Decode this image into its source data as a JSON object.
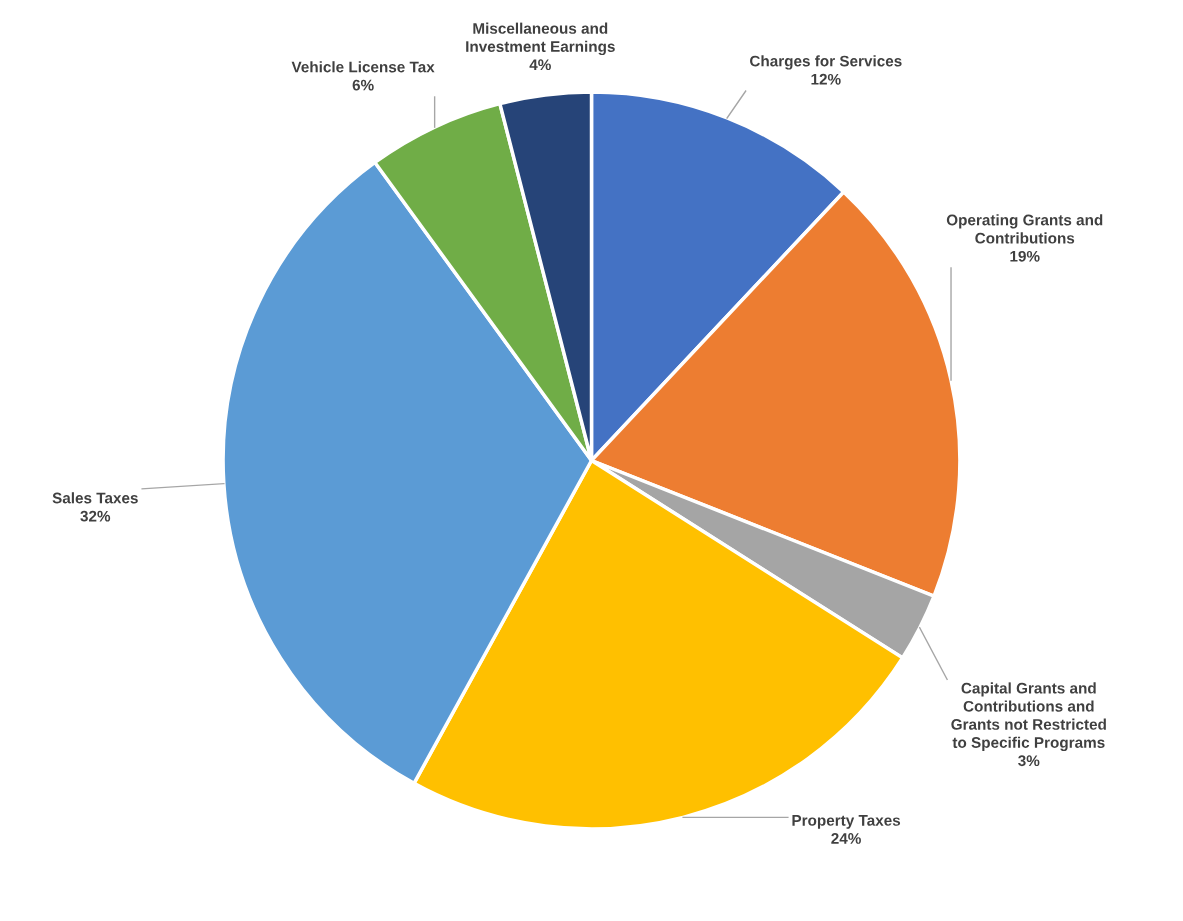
{
  "chart_data": {
    "type": "pie",
    "categories": [
      "Charges for Services",
      "Operating Grants and\nContributions",
      "Capital Grants and\nContributions and\nGrants not Restricted\nto Specific Programs",
      "Property Taxes",
      "Sales Taxes",
      "Vehicle License Tax",
      "Miscellaneous and\nInvestment Earnings"
    ],
    "values": [
      12,
      19,
      3,
      24,
      32,
      6,
      4
    ],
    "value_labels": [
      "12%",
      "19%",
      "3%",
      "24%",
      "32%",
      "6%",
      "4%"
    ],
    "colors": [
      "#4472c4",
      "#ed7d31",
      "#a5a5a5",
      "#ffc000",
      "#5b9bd5",
      "#70ad47",
      "#264478"
    ],
    "legend": false
  }
}
